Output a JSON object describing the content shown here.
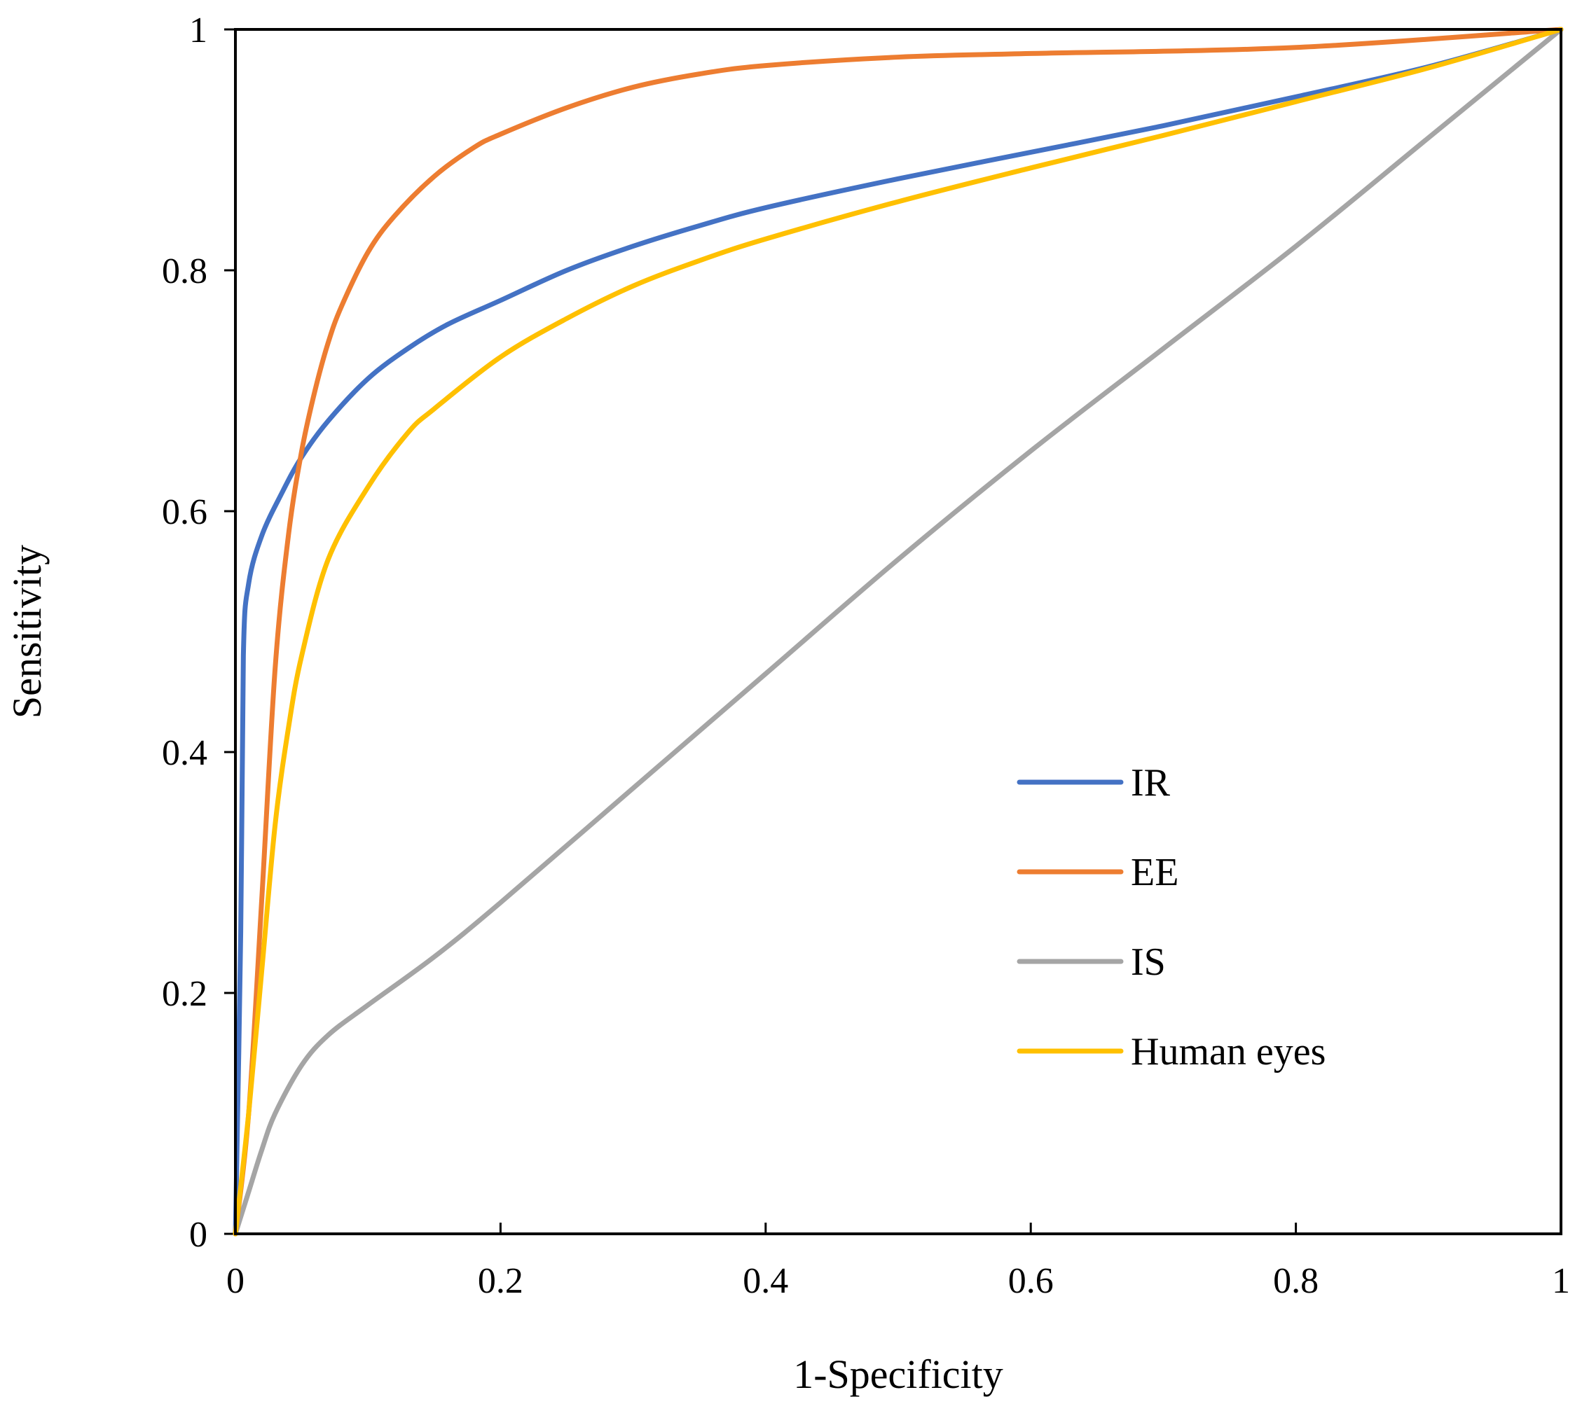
{
  "chart_data": {
    "type": "line",
    "title": "",
    "xlabel": "1-Specificity",
    "ylabel": "Sensitivity",
    "xlim": [
      0,
      1
    ],
    "ylim": [
      0,
      1
    ],
    "grid": false,
    "legend_position": "lower-right",
    "x_ticks": [
      {
        "value": 0,
        "label": "0"
      },
      {
        "value": 0.2,
        "label": "0.2"
      },
      {
        "value": 0.4,
        "label": "0.4"
      },
      {
        "value": 0.6,
        "label": "0.6"
      },
      {
        "value": 0.8,
        "label": "0.8"
      },
      {
        "value": 1,
        "label": "1"
      }
    ],
    "y_ticks": [
      {
        "value": 0,
        "label": "0"
      },
      {
        "value": 0.2,
        "label": "0.2"
      },
      {
        "value": 0.4,
        "label": "0.4"
      },
      {
        "value": 0.6,
        "label": "0.6"
      },
      {
        "value": 0.8,
        "label": "0.8"
      },
      {
        "value": 1,
        "label": "1"
      }
    ],
    "series": [
      {
        "name": "IR",
        "color": "#4472C4",
        "x": [
          0,
          0.004,
          0.006,
          0.01,
          0.02,
          0.035,
          0.05,
          0.07,
          0.1,
          0.13,
          0.16,
          0.2,
          0.25,
          0.3,
          0.35,
          0.4,
          0.5,
          0.6,
          0.7,
          0.8,
          0.9,
          1
        ],
        "y": [
          0,
          0.25,
          0.48,
          0.54,
          0.58,
          0.615,
          0.645,
          0.675,
          0.71,
          0.735,
          0.755,
          0.775,
          0.8,
          0.82,
          0.837,
          0.852,
          0.876,
          0.898,
          0.92,
          0.944,
          0.969,
          1
        ]
      },
      {
        "name": "EE",
        "color": "#ED7D31",
        "x": [
          0,
          0.01,
          0.02,
          0.03,
          0.04,
          0.05,
          0.06,
          0.07,
          0.08,
          0.1,
          0.12,
          0.15,
          0.18,
          0.2,
          0.25,
          0.3,
          0.35,
          0.4,
          0.5,
          0.6,
          0.8,
          1
        ],
        "y": [
          0,
          0.1,
          0.28,
          0.47,
          0.58,
          0.65,
          0.7,
          0.74,
          0.77,
          0.815,
          0.845,
          0.878,
          0.902,
          0.913,
          0.935,
          0.952,
          0.963,
          0.97,
          0.977,
          0.98,
          0.985,
          1
        ]
      },
      {
        "name": "IS",
        "color": "#A5A5A5",
        "x": [
          0,
          0.01,
          0.02,
          0.03,
          0.05,
          0.07,
          0.1,
          0.15,
          0.2,
          0.3,
          0.4,
          0.5,
          0.6,
          0.7,
          0.8,
          0.9,
          1
        ],
        "y": [
          0,
          0.035,
          0.07,
          0.1,
          0.14,
          0.165,
          0.19,
          0.23,
          0.275,
          0.37,
          0.465,
          0.56,
          0.65,
          0.735,
          0.82,
          0.91,
          1
        ]
      },
      {
        "name": "Human eyes",
        "color": "#FFC000",
        "x": [
          0,
          0.01,
          0.02,
          0.03,
          0.04,
          0.05,
          0.07,
          0.1,
          0.13,
          0.15,
          0.2,
          0.25,
          0.3,
          0.35,
          0.4,
          0.5,
          0.6,
          0.7,
          0.8,
          0.9,
          1
        ],
        "y": [
          0,
          0.1,
          0.22,
          0.34,
          0.42,
          0.48,
          0.56,
          0.62,
          0.665,
          0.685,
          0.728,
          0.76,
          0.787,
          0.808,
          0.826,
          0.857,
          0.885,
          0.912,
          0.94,
          0.968,
          1
        ]
      }
    ]
  }
}
